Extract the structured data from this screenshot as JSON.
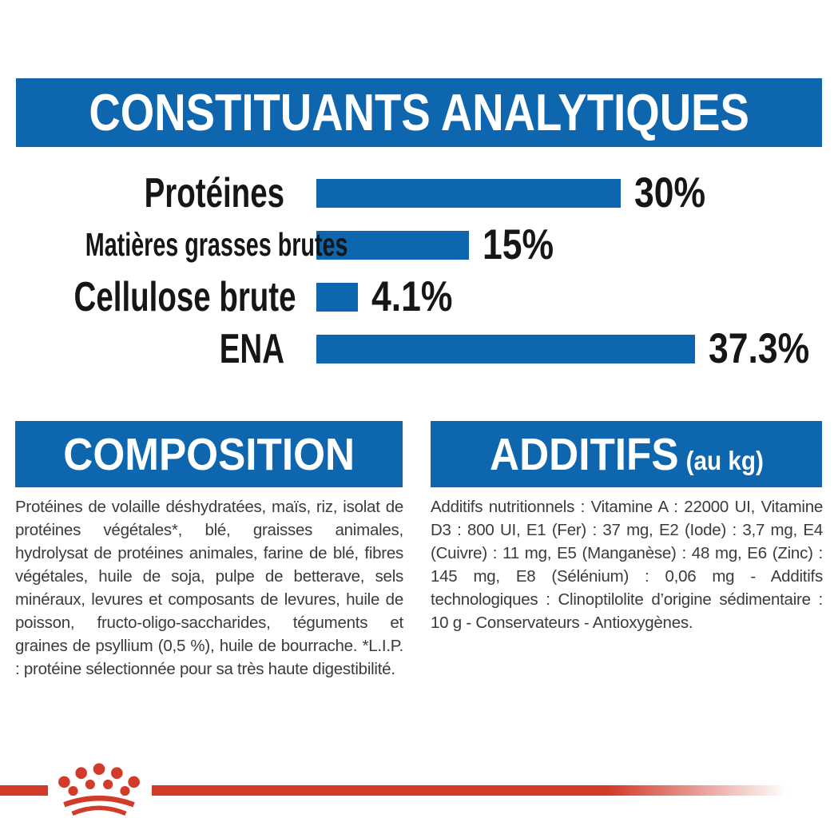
{
  "colors": {
    "brand_blue": "#0e67ae",
    "brand_red": "#d23a2a",
    "chart_text": "#161614",
    "body_text": "#3b3b3a",
    "banner_text": "#ffffff"
  },
  "banner": {
    "title": "CONSTITUANTS ANALYTIQUES"
  },
  "chart_data": {
    "type": "bar",
    "orientation": "horizontal",
    "title": "CONSTITUANTS ANALYTIQUES",
    "categories": [
      "Protéines",
      "Matières grasses brutes",
      "Cellulose brute",
      "ENA"
    ],
    "values": [
      30,
      15,
      4.1,
      37.3
    ],
    "value_labels": [
      "30%",
      "15%",
      "4.1%",
      "37.3%"
    ],
    "unit": "%",
    "bar_color": "#0e67ae",
    "xlim": [
      0,
      40
    ],
    "grid": false,
    "legend": false
  },
  "sections": {
    "composition": {
      "title": "COMPOSITION",
      "body": "Protéines de volaille déshydratées, maïs, riz, isolat de protéines végétales*, blé, graisses animales, hydrolysat de protéines animales, farine de blé, fibres végétales, huile de soja, pulpe de betterave, sels minéraux, levures et composants de levures, huile de poisson, fructo-oligo-saccharides, téguments et graines de psyllium (0,5 %), huile de bourrache. *L.I.P. : protéine sélectionnée pour sa très haute digestibilité."
    },
    "additifs": {
      "title": "ADDITIFS",
      "title_suffix": "(au kg)",
      "body": "Additifs nutritionnels : Vitamine A : 22000 UI, Vitamine D3 : 800 UI, E1 (Fer) : 37 mg, E2 (Iode) : 3,7 mg, E4 (Cuivre) : 11 mg, E5 (Manganèse) : 48 mg, E6 (Zinc) : 145 mg, E8 (Sélénium) : 0,06 mg - Additifs technologiques : Clinoptilolite d’origine sédimentaire : 10 g - Conservateurs - Antioxygènes."
    }
  },
  "footer": {
    "logo": "royal-canin-crown"
  }
}
